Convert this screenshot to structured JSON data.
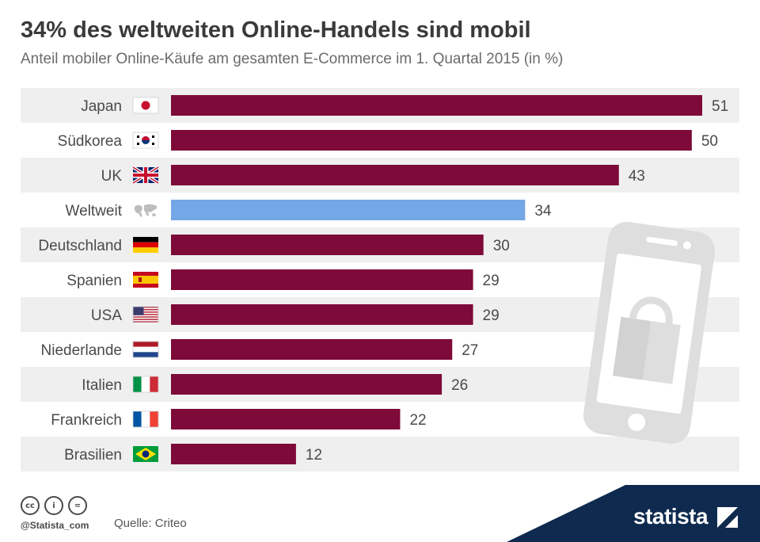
{
  "header": {
    "title": "34% des weltweiten Online-Handels sind mobil",
    "subtitle": "Anteil mobiler Online-Käufe am gesamten E-Commerce im 1. Quartal 2015 (in %)"
  },
  "chart_data": {
    "type": "bar",
    "orientation": "horizontal",
    "categories": [
      "Japan",
      "Südkorea",
      "UK",
      "Weltweit",
      "Deutschland",
      "Spanien",
      "USA",
      "Niederlande",
      "Italien",
      "Frankreich",
      "Brasilien"
    ],
    "values": [
      51,
      50,
      43,
      34,
      30,
      29,
      29,
      27,
      26,
      22,
      12
    ],
    "flags": [
      "japan-flag-icon",
      "south-korea-flag-icon",
      "uk-flag-icon",
      "world-map-icon",
      "germany-flag-icon",
      "spain-flag-icon",
      "usa-flag-icon",
      "netherlands-flag-icon",
      "italy-flag-icon",
      "france-flag-icon",
      "brazil-flag-icon"
    ],
    "highlight_index": 3,
    "xlim": [
      0,
      51
    ],
    "grid": false,
    "colors": {
      "bar": "#7d0a38",
      "highlight": "#73a7e6",
      "row_stripe": "#efefef",
      "label": "#4a4a4a",
      "value": "#4a4a4a"
    }
  },
  "decoration": {
    "illustration": "smartphone-shopping-bag-icon",
    "illustration_color": "#dedede"
  },
  "footer": {
    "license_icons": [
      "cc",
      "by",
      "nd"
    ],
    "handle": "@Statista_com",
    "source": "Quelle: Criteo",
    "brand": "statista",
    "brand_color": "#0e2a4e"
  }
}
